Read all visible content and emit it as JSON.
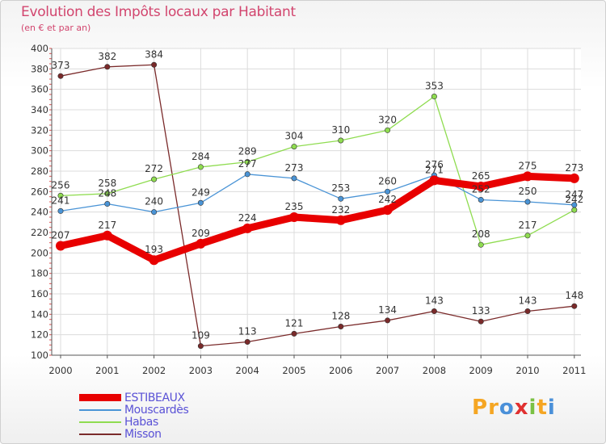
{
  "title": "Evolution des Impôts locaux par Habitant",
  "subtitle": "(en € et par an)",
  "logo": [
    "P",
    "r",
    "o",
    "x",
    "i",
    "t",
    "i"
  ],
  "chart_data": {
    "type": "line",
    "x": [
      "2000",
      "2001",
      "2002",
      "2003",
      "2004",
      "2005",
      "2006",
      "2007",
      "2008",
      "2009",
      "2010",
      "2011"
    ],
    "ylim": [
      100,
      400
    ],
    "yticks": [
      100,
      120,
      140,
      160,
      180,
      200,
      220,
      240,
      260,
      280,
      300,
      320,
      340,
      360,
      380,
      400
    ],
    "grid": true,
    "legend_position": "bottom-left",
    "series": [
      {
        "name": "ESTIBEAUX",
        "color": "#e80000",
        "values": [
          207,
          217,
          193,
          209,
          224,
          235,
          232,
          242,
          271,
          265,
          275,
          273
        ]
      },
      {
        "name": "Mouscardès",
        "color": "#4a94d6",
        "values": [
          241,
          248,
          240,
          249,
          277,
          273,
          253,
          260,
          276,
          252,
          250,
          247
        ]
      },
      {
        "name": "Habas",
        "color": "#8fdc50",
        "values": [
          256,
          258,
          272,
          284,
          289,
          304,
          310,
          320,
          353,
          208,
          217,
          242
        ]
      },
      {
        "name": "Misson",
        "color": "#7a2a2a",
        "values": [
          373,
          382,
          384,
          109,
          113,
          121,
          128,
          134,
          143,
          133,
          143,
          148
        ]
      }
    ]
  }
}
